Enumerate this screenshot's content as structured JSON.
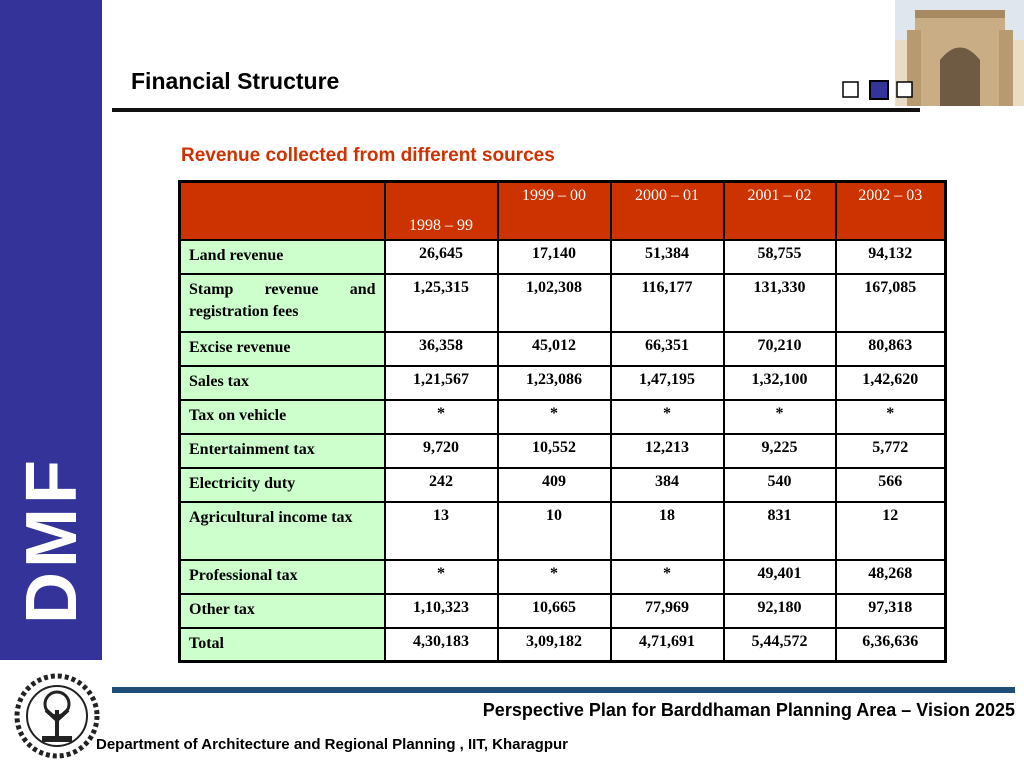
{
  "header": {
    "title": "Financial Structure"
  },
  "side_label": "DMF",
  "subtitle": "Revenue collected from different sources",
  "table": {
    "columns": [
      "1998 – 99",
      "1999 – 00",
      "2000 – 01",
      "2001 – 02",
      "2002 – 03"
    ],
    "rows": [
      {
        "label": "Land revenue",
        "values": [
          "26,645",
          "17,140",
          "51,384",
          "58,755",
          "94,132"
        ]
      },
      {
        "label": "Stamp revenue and registration fees",
        "values": [
          "1,25,315",
          "1,02,308",
          "116,177",
          "131,330",
          "167,085"
        ]
      },
      {
        "label": "Excise revenue",
        "values": [
          "36,358",
          "45,012",
          "66,351",
          "70,210",
          "80,863"
        ]
      },
      {
        "label": "Sales tax",
        "values": [
          "1,21,567",
          "1,23,086",
          "1,47,195",
          "1,32,100",
          "1,42,620"
        ]
      },
      {
        "label": "Tax on vehicle",
        "values": [
          "*",
          "*",
          "*",
          "*",
          "*"
        ]
      },
      {
        "label": "Entertainment tax",
        "values": [
          "9,720",
          "10,552",
          "12,213",
          "9,225",
          "5,772"
        ]
      },
      {
        "label": "Electricity duty",
        "values": [
          "242",
          "409",
          "384",
          "540",
          "566"
        ]
      },
      {
        "label": "Agricultural income tax",
        "values": [
          "13",
          "10",
          "18",
          "831",
          "12"
        ]
      },
      {
        "label": "Professional tax",
        "values": [
          "*",
          "*",
          "*",
          "49,401",
          "48,268"
        ]
      },
      {
        "label": "Other tax",
        "values": [
          "1,10,323",
          "10,665",
          "77,969",
          "92,180",
          "97,318"
        ]
      },
      {
        "label": "Total",
        "values": [
          "4,30,183",
          "3,09,182",
          "4,71,691",
          "5,44,572",
          "6,36,636"
        ]
      }
    ]
  },
  "footer": {
    "plan": "Perspective Plan for Barddhaman Planning Area – Vision 2025",
    "department": "Department of Architecture and Regional Planning , IIT, Kharagpur"
  }
}
